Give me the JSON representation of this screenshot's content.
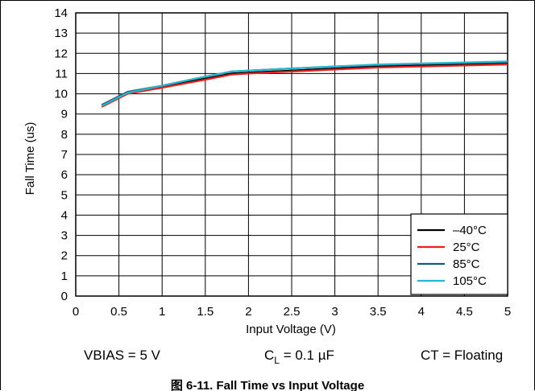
{
  "chart_data": {
    "type": "line",
    "title": "",
    "caption": "图 6-11. Fall Time vs Input Voltage",
    "xlabel": "Input Voltage (V)",
    "ylabel": "Fall Time (us)",
    "xlim": [
      0,
      5
    ],
    "ylim": [
      0,
      14
    ],
    "xticks": [
      0,
      0.5,
      1,
      1.5,
      2,
      2.5,
      3,
      3.5,
      4,
      4.5,
      5
    ],
    "yticks": [
      0,
      1,
      2,
      3,
      4,
      5,
      6,
      7,
      8,
      9,
      10,
      11,
      12,
      13,
      14
    ],
    "grid": true,
    "legend_position": "bottom-right",
    "series": [
      {
        "name": "–40°C",
        "color": "#000000",
        "x": [
          0.3,
          0.6,
          1.0,
          1.5,
          1.8,
          2.0,
          2.5,
          3.0,
          3.5,
          4.0,
          4.5,
          5.0
        ],
        "y": [
          9.4,
          10.05,
          10.35,
          10.75,
          11.0,
          11.05,
          11.15,
          11.25,
          11.35,
          11.4,
          11.45,
          11.5
        ]
      },
      {
        "name": "25°C",
        "color": "#e8221b",
        "x": [
          0.3,
          0.6,
          1.0,
          1.5,
          1.8,
          2.0,
          2.5,
          3.0,
          3.5,
          4.0,
          4.5,
          5.0
        ],
        "y": [
          9.35,
          10.0,
          10.3,
          10.7,
          10.95,
          11.0,
          11.1,
          11.2,
          11.3,
          11.35,
          11.4,
          11.45
        ]
      },
      {
        "name": "85°C",
        "color": "#1b5a73",
        "x": [
          0.3,
          0.6,
          1.0,
          1.5,
          1.8,
          2.0,
          2.5,
          3.0,
          3.5,
          4.0,
          4.5,
          5.0
        ],
        "y": [
          9.45,
          10.1,
          10.4,
          10.85,
          11.1,
          11.15,
          11.25,
          11.35,
          11.42,
          11.48,
          11.52,
          11.56
        ]
      },
      {
        "name": "105°C",
        "color": "#22b8d4",
        "x": [
          0.3,
          0.6,
          1.0,
          1.5,
          1.8,
          2.0,
          2.5,
          3.0,
          3.5,
          4.0,
          4.5,
          5.0
        ],
        "y": [
          9.4,
          10.05,
          10.4,
          10.85,
          11.1,
          11.15,
          11.25,
          11.35,
          11.45,
          11.5,
          11.55,
          11.6
        ]
      }
    ],
    "conditions": [
      "VBIAS = 5 V",
      "C",
      "L",
      " = 0.1 µF",
      "CT = Floating"
    ]
  }
}
